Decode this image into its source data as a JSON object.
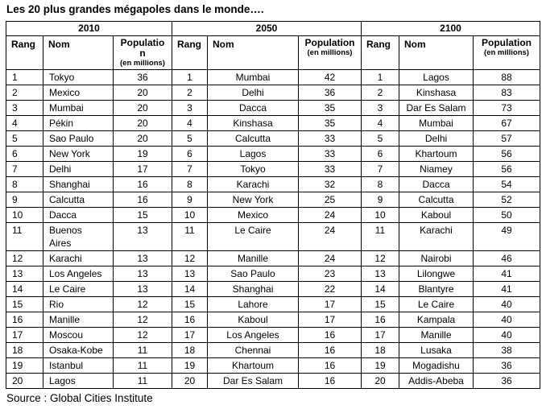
{
  "title": "Les 20 plus grandes mégapoles dans le monde….",
  "source": "Source : Global Cities Institute",
  "table": {
    "groups": [
      {
        "year": "2010",
        "rank_label": "Rang",
        "name_label": "Nom",
        "population_label": "Populatio\nn",
        "population_sub": "(en millions)",
        "rows": [
          {
            "rank": "1",
            "name": "Tokyo",
            "population": "36"
          },
          {
            "rank": "2",
            "name": "Mexico",
            "population": "20"
          },
          {
            "rank": "3",
            "name": "Mumbai",
            "population": "20"
          },
          {
            "rank": "4",
            "name": "Pékin",
            "population": "20"
          },
          {
            "rank": "5",
            "name": "Sao Paulo",
            "population": "20"
          },
          {
            "rank": "6",
            "name": "New York",
            "population": "19"
          },
          {
            "rank": "7",
            "name": "Delhi",
            "population": "17"
          },
          {
            "rank": "8",
            "name": "Shanghai",
            "population": "16"
          },
          {
            "rank": "9",
            "name": "Calcutta",
            "population": "16"
          },
          {
            "rank": "10",
            "name": "Dacca",
            "population": "15"
          },
          {
            "rank": "11",
            "name": "Buenos Aires",
            "population": "13"
          },
          {
            "rank": "12",
            "name": "Karachi",
            "population": "13"
          },
          {
            "rank": "13",
            "name": "Los Angeles",
            "population": "13"
          },
          {
            "rank": "14",
            "name": "Le Caire",
            "population": "13"
          },
          {
            "rank": "15",
            "name": "Rio",
            "population": "12"
          },
          {
            "rank": "16",
            "name": "Manille",
            "population": "12"
          },
          {
            "rank": "17",
            "name": "Moscou",
            "population": "12"
          },
          {
            "rank": "18",
            "name": "Osaka-Kobe",
            "population": "11"
          },
          {
            "rank": "19",
            "name": "Istanbul",
            "population": "11"
          },
          {
            "rank": "20",
            "name": "Lagos",
            "population": "11"
          }
        ]
      },
      {
        "year": "2050",
        "rank_label": "Rang",
        "name_label": "Nom",
        "population_label": "Population",
        "population_sub": "(en millions)",
        "rows": [
          {
            "rank": "1",
            "name": "Mumbai",
            "population": "42"
          },
          {
            "rank": "2",
            "name": "Delhi",
            "population": "36"
          },
          {
            "rank": "3",
            "name": "Dacca",
            "population": "35"
          },
          {
            "rank": "4",
            "name": "Kinshasa",
            "population": "35"
          },
          {
            "rank": "5",
            "name": "Calcutta",
            "population": "33"
          },
          {
            "rank": "6",
            "name": "Lagos",
            "population": "33"
          },
          {
            "rank": "7",
            "name": "Tokyo",
            "population": "33"
          },
          {
            "rank": "8",
            "name": "Karachi",
            "population": "32"
          },
          {
            "rank": "9",
            "name": "New York",
            "population": "25"
          },
          {
            "rank": "10",
            "name": "Mexico",
            "population": "24"
          },
          {
            "rank": "11",
            "name": "Le Caire",
            "population": "24"
          },
          {
            "rank": "12",
            "name": "Manille",
            "population": "24"
          },
          {
            "rank": "13",
            "name": "Sao Paulo",
            "population": "23"
          },
          {
            "rank": "14",
            "name": "Shanghai",
            "population": "22"
          },
          {
            "rank": "15",
            "name": "Lahore",
            "population": "17"
          },
          {
            "rank": "16",
            "name": "Kaboul",
            "population": "17"
          },
          {
            "rank": "17",
            "name": "Los Angeles",
            "population": "16"
          },
          {
            "rank": "18",
            "name": "Chennai",
            "population": "16"
          },
          {
            "rank": "19",
            "name": "Khartoum",
            "population": "16"
          },
          {
            "rank": "20",
            "name": "Dar Es Salam",
            "population": "16"
          }
        ]
      },
      {
        "year": "2100",
        "rank_label": "Rang",
        "name_label": "Nom",
        "population_label": "Population",
        "population_sub": "(en millions)",
        "rows": [
          {
            "rank": "1",
            "name": "Lagos",
            "population": "88"
          },
          {
            "rank": "2",
            "name": "Kinshasa",
            "population": "83"
          },
          {
            "rank": "3",
            "name": "Dar Es Salam",
            "population": "73"
          },
          {
            "rank": "4",
            "name": "Mumbai",
            "population": "67"
          },
          {
            "rank": "5",
            "name": "Delhi",
            "population": "57"
          },
          {
            "rank": "6",
            "name": "Khartoum",
            "population": "56"
          },
          {
            "rank": "7",
            "name": "Niamey",
            "population": "56"
          },
          {
            "rank": "8",
            "name": "Dacca",
            "population": "54"
          },
          {
            "rank": "9",
            "name": "Calcutta",
            "population": "52"
          },
          {
            "rank": "10",
            "name": "Kaboul",
            "population": "50"
          },
          {
            "rank": "11",
            "name": "Karachi",
            "population": "49"
          },
          {
            "rank": "12",
            "name": "Nairobi",
            "population": "46"
          },
          {
            "rank": "13",
            "name": "Lilongwe",
            "population": "41"
          },
          {
            "rank": "14",
            "name": "Blantyre",
            "population": "41"
          },
          {
            "rank": "15",
            "name": "Le Caire",
            "population": "40"
          },
          {
            "rank": "16",
            "name": "Kampala",
            "population": "40"
          },
          {
            "rank": "17",
            "name": "Manille",
            "population": "40"
          },
          {
            "rank": "18",
            "name": "Lusaka",
            "population": "38"
          },
          {
            "rank": "19",
            "name": "Mogadishu",
            "population": "36"
          },
          {
            "rank": "20",
            "name": "Addis-Abeba",
            "population": "36"
          }
        ]
      }
    ]
  }
}
